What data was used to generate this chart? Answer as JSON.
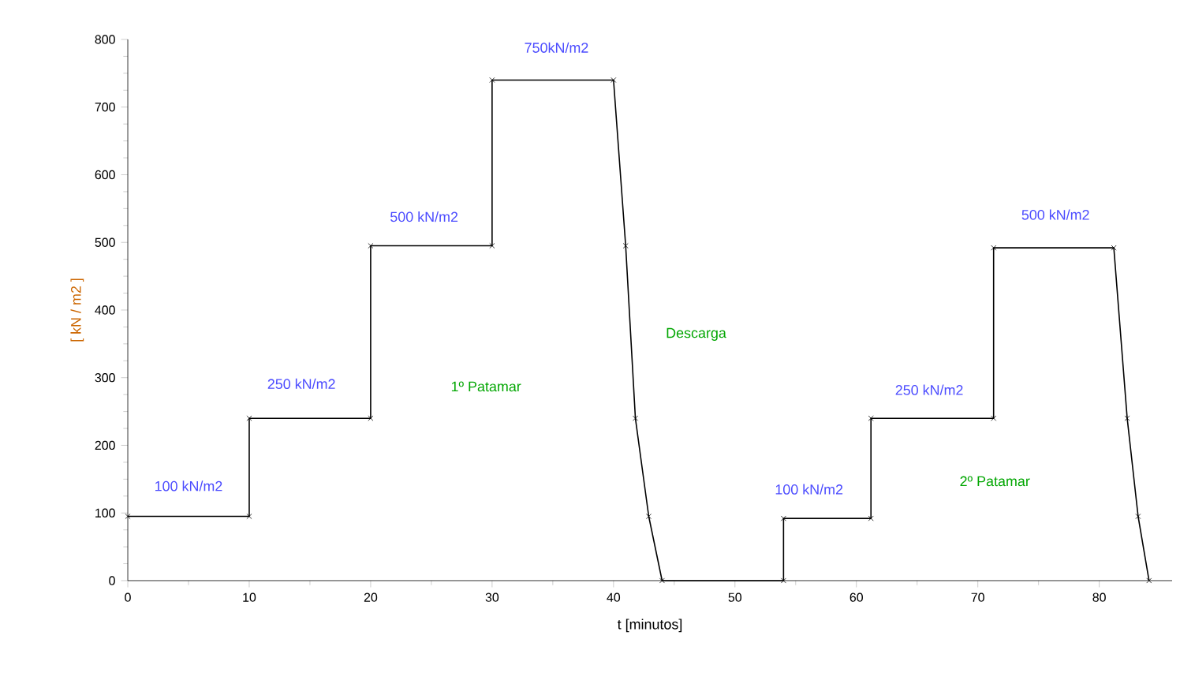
{
  "chart_data": {
    "type": "line",
    "xlabel": "t [minutos]",
    "ylabel": "[ kN / m2 ]",
    "x": [
      0,
      10,
      10,
      20,
      20,
      30,
      30,
      40,
      41,
      41.8,
      42.9,
      44,
      54,
      54,
      61.2,
      61.2,
      71.3,
      71.3,
      81.2,
      82.3,
      83.2,
      84.1
    ],
    "series": [
      {
        "color": "#000000",
        "values": [
          95,
          95,
          240,
          240,
          495,
          495,
          740,
          740,
          495,
          240,
          95,
          0,
          0,
          92,
          92,
          240,
          240,
          492,
          492,
          240,
          95,
          0
        ]
      }
    ],
    "marker": "cross",
    "line_style": "solid",
    "grid": false,
    "xlim": [
      0,
      86
    ],
    "ylim": [
      0,
      800
    ],
    "xticks": [
      0,
      10,
      20,
      30,
      40,
      50,
      60,
      70,
      80
    ],
    "yticks": [
      0,
      100,
      200,
      300,
      400,
      500,
      600,
      700,
      800
    ],
    "annotations": [
      "100 kN/m2",
      "250 kN/m2",
      "500 kN/m2",
      "750kN/m2",
      "1º Patamar",
      "Descarga",
      "100 kN/m2",
      "250 kN/m2",
      "500 kN/m2",
      "2º Patamar"
    ]
  }
}
